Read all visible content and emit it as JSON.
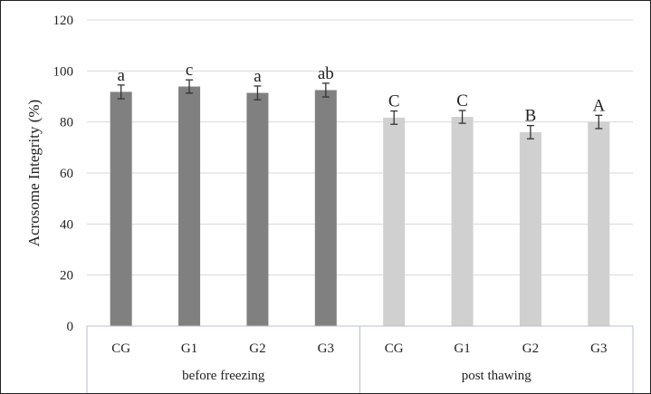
{
  "chart_data": {
    "type": "bar",
    "title": "",
    "ylabel": "Acrosome Integrity (%)",
    "xlabel": "",
    "ylim": [
      0,
      120
    ],
    "yticks": [
      0,
      20,
      40,
      60,
      80,
      100,
      120
    ],
    "grid": true,
    "legend": "none",
    "groups": [
      {
        "label": "before freezing",
        "color": "#808080",
        "categories": [
          "CG",
          "G1",
          "G2",
          "G3"
        ],
        "values": [
          91.8,
          93.9,
          91.4,
          92.5
        ],
        "errors": [
          2.7,
          2.6,
          2.7,
          2.7
        ],
        "letters": [
          "a",
          "c",
          "a",
          "ab"
        ]
      },
      {
        "label": "post thawing",
        "color": "#d0d0d0",
        "categories": [
          "CG",
          "G1",
          "G2",
          "G3"
        ],
        "values": [
          81.7,
          82.0,
          76.0,
          80.0
        ],
        "errors": [
          2.6,
          2.5,
          2.6,
          2.6
        ],
        "letters": [
          "C",
          "C",
          "B",
          "A"
        ]
      }
    ]
  }
}
